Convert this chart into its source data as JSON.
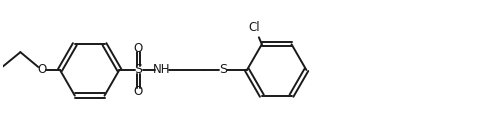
{
  "bg_color": "#ffffff",
  "line_color": "#1a1a1a",
  "line_width": 1.4,
  "font_size": 8.5,
  "figsize": [
    4.92,
    1.32
  ],
  "dpi": 100,
  "xlim": [
    0,
    4.92
  ],
  "ylim": [
    0,
    1.32
  ]
}
